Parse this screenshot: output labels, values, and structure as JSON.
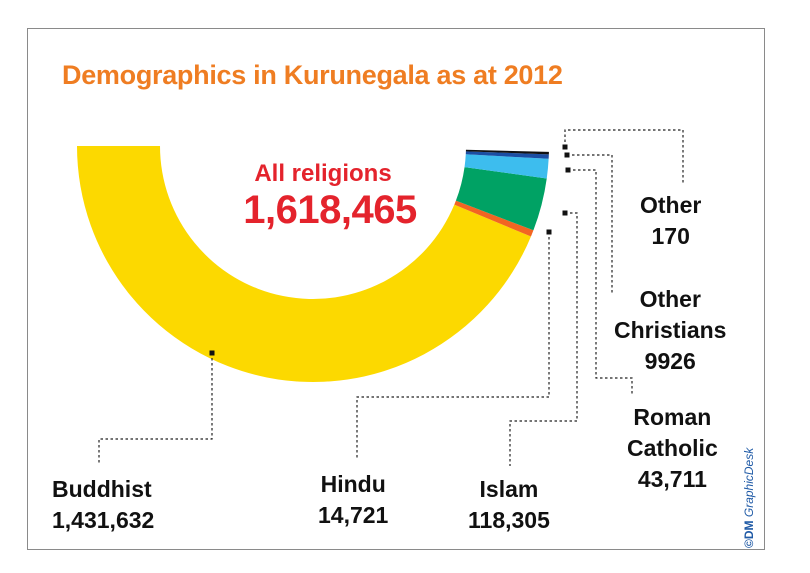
{
  "chart_data": {
    "type": "pie",
    "title": "Demographics in Kurunegala as at 2012",
    "center_label": "All religions",
    "total": "1,618,465",
    "total_value": 1618465,
    "slices": [
      {
        "name": "Buddhist",
        "value": 1431632,
        "label": "1,431,632",
        "color": "#fcd900"
      },
      {
        "name": "Hindu",
        "value": 14721,
        "label": "14,721",
        "color": "#f26522"
      },
      {
        "name": "Islam",
        "value": 118305,
        "label": "118,305",
        "color": "#00a264"
      },
      {
        "name": "Roman Catholic",
        "value": 43711,
        "label": "43,711",
        "color": "#3dbdee"
      },
      {
        "name": "Other Christians",
        "value": 9926,
        "label": "9926",
        "color": "#1b4ea3"
      },
      {
        "name": "Other",
        "value": 170,
        "label": "170",
        "color": "#111111"
      }
    ]
  },
  "labels": {
    "buddhist": {
      "name": "Buddhist",
      "value": "1,431,632"
    },
    "hindu": {
      "name": "Hindu",
      "value": "14,721"
    },
    "islam": {
      "name": "Islam",
      "value": "118,305"
    },
    "roman_catholic": {
      "name_line1": "Roman",
      "name_line2": "Catholic",
      "value": "43,711"
    },
    "other_christians": {
      "name_line1": "Other",
      "name_line2": "Christians",
      "value": "9926"
    },
    "other": {
      "name": "Other",
      "value": "170"
    }
  },
  "credit": {
    "prefix": "©DM",
    "text": "GraphicDesk"
  }
}
